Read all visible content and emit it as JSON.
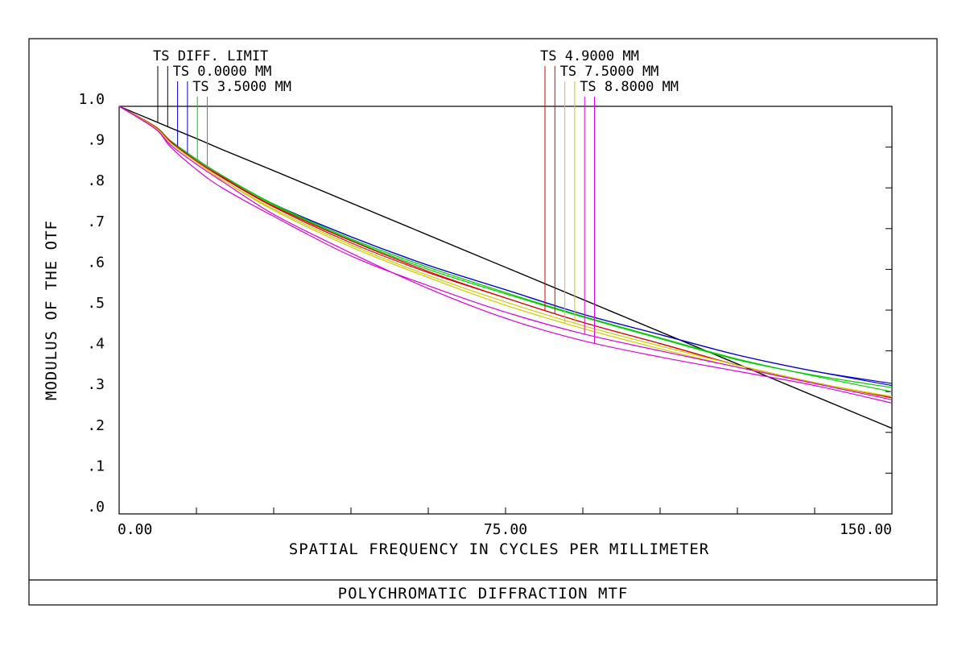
{
  "footer": {
    "title": "POLYCHROMATIC DIFFRACTION MTF"
  },
  "chart_data": {
    "type": "line",
    "title": "",
    "xlabel": "SPATIAL FREQUENCY IN CYCLES PER MILLIMETER",
    "ylabel": "MODULUS OF THE OTF",
    "xlim": [
      0,
      150
    ],
    "ylim": [
      0,
      1.0
    ],
    "x_tick_labels": [
      {
        "value": 0,
        "label": "0.00"
      },
      {
        "value": 75,
        "label": "75.00"
      },
      {
        "value": 150,
        "label": "150.00"
      }
    ],
    "x_minor_ticks": [
      15,
      30,
      45,
      60,
      75,
      90,
      105,
      120,
      135
    ],
    "y_ticks": [
      {
        "value": 1.0,
        "label": "1.0"
      },
      {
        "value": 0.9,
        "label": ".9"
      },
      {
        "value": 0.8,
        "label": ".8"
      },
      {
        "value": 0.7,
        "label": ".7"
      },
      {
        "value": 0.6,
        "label": ".6"
      },
      {
        "value": 0.5,
        "label": ".5"
      },
      {
        "value": 0.4,
        "label": ".4"
      },
      {
        "value": 0.3,
        "label": ".3"
      },
      {
        "value": 0.2,
        "label": ".2"
      },
      {
        "value": 0.1,
        "label": ".1"
      },
      {
        "value": 0.0,
        "label": ".0"
      }
    ],
    "grid": false,
    "x": [
      0,
      7,
      10,
      15,
      20,
      30,
      45,
      60,
      75,
      90,
      105,
      120,
      135,
      150
    ],
    "series": [
      {
        "color": "#000000",
        "legend_label": "TS DIFF. LIMIT",
        "values": [
          1.0,
          0.963,
          0.947,
          0.921,
          0.894,
          0.842,
          0.763,
          0.684,
          0.605,
          0.526,
          0.447,
          0.368,
          0.289,
          0.21
        ]
      },
      {
        "color": "#000000",
        "values": [
          1.0,
          0.963,
          0.947,
          0.921,
          0.894,
          0.842,
          0.763,
          0.684,
          0.605,
          0.526,
          0.447,
          0.368,
          0.289,
          0.21
        ]
      },
      {
        "color": "#0000cc",
        "legend_label": "TS 0.0000 MM",
        "values": [
          1.0,
          0.95,
          0.915,
          0.87,
          0.83,
          0.76,
          0.68,
          0.61,
          0.55,
          0.49,
          0.44,
          0.39,
          0.35,
          0.32
        ]
      },
      {
        "color": "#0000cc",
        "values": [
          1.0,
          0.95,
          0.915,
          0.87,
          0.83,
          0.76,
          0.68,
          0.61,
          0.55,
          0.49,
          0.44,
          0.39,
          0.35,
          0.315
        ]
      },
      {
        "color": "#00cc00",
        "legend_label": "TS 3.5000 MM",
        "values": [
          1.0,
          0.95,
          0.915,
          0.87,
          0.83,
          0.76,
          0.675,
          0.605,
          0.543,
          0.485,
          0.432,
          0.38,
          0.338,
          0.3
        ]
      },
      {
        "color": "#00cc00",
        "values": [
          1.0,
          0.95,
          0.915,
          0.87,
          0.83,
          0.758,
          0.672,
          0.6,
          0.54,
          0.483,
          0.43,
          0.378,
          0.34,
          0.31
        ]
      },
      {
        "color": "#dd0000",
        "legend_label": "TS 4.9000 MM",
        "values": [
          1.0,
          0.95,
          0.913,
          0.866,
          0.827,
          0.755,
          0.67,
          0.595,
          0.53,
          0.47,
          0.418,
          0.365,
          0.322,
          0.285
        ]
      },
      {
        "color": "#dd0000",
        "values": [
          1.0,
          0.95,
          0.913,
          0.866,
          0.825,
          0.753,
          0.665,
          0.592,
          0.53,
          0.47,
          0.418,
          0.365,
          0.322,
          0.285
        ]
      },
      {
        "color": "#cccc00",
        "legend_label": "TS 7.5000 MM",
        "values": [
          1.0,
          0.948,
          0.91,
          0.863,
          0.82,
          0.745,
          0.655,
          0.58,
          0.512,
          0.455,
          0.405,
          0.36,
          0.32,
          0.288
        ]
      },
      {
        "color": "#cccc00",
        "values": [
          1.0,
          0.948,
          0.91,
          0.863,
          0.82,
          0.748,
          0.66,
          0.585,
          0.52,
          0.462,
          0.412,
          0.365,
          0.322,
          0.288
        ]
      },
      {
        "color": "#dd00dd",
        "legend_label": "TS 8.8000 MM",
        "values": [
          1.0,
          0.945,
          0.9,
          0.845,
          0.8,
          0.73,
          0.633,
          0.56,
          0.495,
          0.442,
          0.4,
          0.36,
          0.32,
          0.28
        ]
      },
      {
        "color": "#dd00dd",
        "values": [
          1.0,
          0.945,
          0.905,
          0.858,
          0.816,
          0.735,
          0.64,
          0.553,
          0.48,
          0.425,
          0.385,
          0.35,
          0.315,
          0.272
        ]
      }
    ]
  }
}
